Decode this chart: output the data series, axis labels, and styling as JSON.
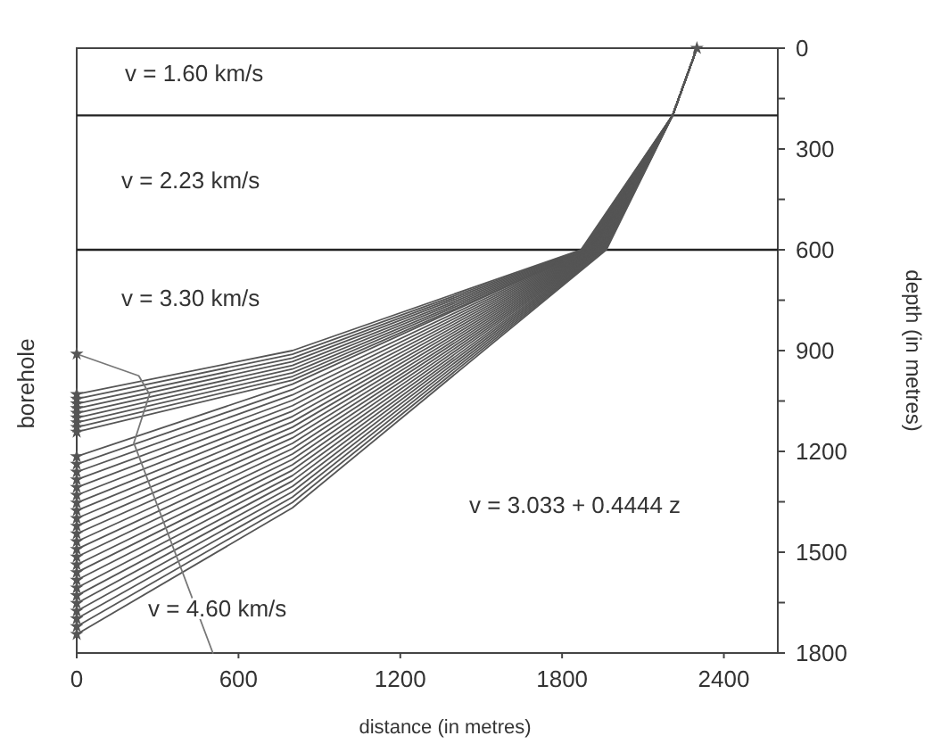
{
  "chart_data": {
    "type": "line",
    "xlabel": "distance (in metres)",
    "ylabel": "depth (in metres)",
    "xlim": [
      0,
      2600
    ],
    "xticks": [
      0,
      600,
      1200,
      1800,
      2400
    ],
    "ylim": [
      1800,
      0
    ],
    "yticks": [
      0,
      {
        "value": 150,
        "label": null
      },
      300,
      {
        "value": 450,
        "label": null
      },
      600,
      {
        "value": 750,
        "label": null
      },
      900,
      {
        "value": 1050,
        "label": null
      },
      1200,
      {
        "value": 1350,
        "label": null
      },
      1500,
      {
        "value": 1650,
        "label": null
      },
      1800
    ],
    "grid": false,
    "marker": "none",
    "line_style": "solid",
    "ref_lines": [
      {
        "axis": "y",
        "value": 200,
        "color": "#222222"
      },
      {
        "axis": "y",
        "value": 600,
        "color": "#222222"
      }
    ],
    "annotations": [
      "v = 1.60 km/s",
      "v = 2.23 km/s",
      "v = 3.30 km/s",
      "v = 4.60 km/s",
      "v = 3.033 + 0.4444 z",
      "borehole"
    ],
    "series": [
      {
        "x": [
          2300,
          2210,
          1870,
          800,
          0
        ],
        "values": [
          0,
          200,
          600,
          900,
          1030
        ],
        "color": "#555555"
      },
      {
        "x": [
          2300,
          2210,
          1874,
          800,
          0
        ],
        "values": [
          0,
          200,
          600,
          911,
          1044
        ],
        "color": "#555555"
      },
      {
        "x": [
          2300,
          2210,
          1878,
          800,
          0
        ],
        "values": [
          0,
          200,
          600,
          922,
          1058
        ],
        "color": "#555555"
      },
      {
        "x": [
          2300,
          2210,
          1882,
          800,
          0
        ],
        "values": [
          0,
          200,
          600,
          933,
          1072
        ],
        "color": "#555555"
      },
      {
        "x": [
          2300,
          2210,
          1886,
          800,
          0
        ],
        "values": [
          0,
          200,
          600,
          944,
          1086
        ],
        "color": "#555555"
      },
      {
        "x": [
          2300,
          2210,
          1890,
          800,
          0
        ],
        "values": [
          0,
          200,
          600,
          955,
          1100
        ],
        "color": "#555555"
      },
      {
        "x": [
          2300,
          2210,
          1894,
          800,
          0
        ],
        "values": [
          0,
          200,
          600,
          966,
          1114
        ],
        "color": "#555555"
      },
      {
        "x": [
          2300,
          2210,
          1898,
          800,
          0
        ],
        "values": [
          0,
          200,
          600,
          977,
          1128
        ],
        "color": "#555555"
      },
      {
        "x": [
          2300,
          2210,
          1902,
          800,
          0
        ],
        "values": [
          0,
          200,
          600,
          988,
          1142
        ],
        "color": "#555555"
      },
      {
        "x": [
          2300,
          2210,
          1895,
          800,
          0
        ],
        "values": [
          0,
          200,
          600,
          1000,
          1215
        ],
        "color": "#555555"
      },
      {
        "x": [
          2300,
          2210,
          1898,
          800,
          0
        ],
        "values": [
          0,
          200,
          600,
          1016,
          1238
        ],
        "color": "#555555"
      },
      {
        "x": [
          2300,
          2210,
          1901,
          800,
          0
        ],
        "values": [
          0,
          200,
          600,
          1032,
          1261
        ],
        "color": "#555555"
      },
      {
        "x": [
          2300,
          2210,
          1904,
          800,
          0
        ],
        "values": [
          0,
          200,
          600,
          1048,
          1284
        ],
        "color": "#555555"
      },
      {
        "x": [
          2300,
          2210,
          1907,
          800,
          0
        ],
        "values": [
          0,
          200,
          600,
          1064,
          1307
        ],
        "color": "#555555"
      },
      {
        "x": [
          2300,
          2210,
          1910,
          800,
          0
        ],
        "values": [
          0,
          200,
          600,
          1080,
          1330
        ],
        "color": "#555555"
      },
      {
        "x": [
          2300,
          2210,
          1913,
          800,
          0
        ],
        "values": [
          0,
          200,
          600,
          1096,
          1353
        ],
        "color": "#555555"
      },
      {
        "x": [
          2300,
          2210,
          1916,
          800,
          0
        ],
        "values": [
          0,
          200,
          600,
          1112,
          1376
        ],
        "color": "#555555"
      },
      {
        "x": [
          2300,
          2210,
          1919,
          800,
          0
        ],
        "values": [
          0,
          200,
          600,
          1128,
          1399
        ],
        "color": "#555555"
      },
      {
        "x": [
          2300,
          2210,
          1922,
          800,
          0
        ],
        "values": [
          0,
          200,
          600,
          1144,
          1422
        ],
        "color": "#555555"
      },
      {
        "x": [
          2300,
          2210,
          1925,
          800,
          0
        ],
        "values": [
          0,
          200,
          600,
          1160,
          1445
        ],
        "color": "#555555"
      },
      {
        "x": [
          2300,
          2210,
          1928,
          800,
          0
        ],
        "values": [
          0,
          200,
          600,
          1176,
          1468
        ],
        "color": "#555555"
      },
      {
        "x": [
          2300,
          2210,
          1931,
          800,
          0
        ],
        "values": [
          0,
          200,
          600,
          1192,
          1491
        ],
        "color": "#555555"
      },
      {
        "x": [
          2300,
          2210,
          1934,
          800,
          0
        ],
        "values": [
          0,
          200,
          600,
          1208,
          1514
        ],
        "color": "#555555"
      },
      {
        "x": [
          2300,
          2210,
          1937,
          800,
          0
        ],
        "values": [
          0,
          200,
          600,
          1224,
          1537
        ],
        "color": "#555555"
      },
      {
        "x": [
          2300,
          2210,
          1940,
          800,
          0
        ],
        "values": [
          0,
          200,
          600,
          1240,
          1560
        ],
        "color": "#555555"
      },
      {
        "x": [
          2300,
          2210,
          1943,
          800,
          0
        ],
        "values": [
          0,
          200,
          600,
          1256,
          1583
        ],
        "color": "#555555"
      },
      {
        "x": [
          2300,
          2210,
          1946,
          800,
          0
        ],
        "values": [
          0,
          200,
          600,
          1272,
          1606
        ],
        "color": "#555555"
      },
      {
        "x": [
          2300,
          2210,
          1949,
          800,
          0
        ],
        "values": [
          0,
          200,
          600,
          1288,
          1629
        ],
        "color": "#555555"
      },
      {
        "x": [
          2300,
          2210,
          1952,
          800,
          0
        ],
        "values": [
          0,
          200,
          600,
          1304,
          1652
        ],
        "color": "#555555"
      },
      {
        "x": [
          2300,
          2210,
          1955,
          800,
          0
        ],
        "values": [
          0,
          200,
          600,
          1320,
          1675
        ],
        "color": "#555555"
      },
      {
        "x": [
          2300,
          2210,
          1958,
          800,
          0
        ],
        "values": [
          0,
          200,
          600,
          1336,
          1698
        ],
        "color": "#555555"
      },
      {
        "x": [
          2300,
          2210,
          1961,
          800,
          0
        ],
        "values": [
          0,
          200,
          600,
          1352,
          1721
        ],
        "color": "#555555"
      },
      {
        "x": [
          2300,
          2210,
          1964,
          800,
          0
        ],
        "values": [
          0,
          200,
          600,
          1368,
          1744
        ],
        "color": "#555555"
      },
      {
        "x": [
          0,
          230,
          270,
          212,
          505
        ],
        "values": [
          910,
          975,
          1030,
          1175,
          1800
        ],
        "color": "#777777"
      },
      {
        "type": "scatter",
        "marker": "star",
        "x": [
          0,
          0,
          0,
          0,
          0,
          0,
          0,
          0,
          0,
          0,
          0,
          0,
          0,
          0,
          0,
          0,
          0,
          0,
          0,
          0,
          0,
          0,
          0,
          0,
          0,
          0,
          0,
          0,
          0,
          0,
          0,
          0,
          0,
          0
        ],
        "values": [
          910,
          1030,
          1044,
          1058,
          1072,
          1086,
          1100,
          1114,
          1128,
          1142,
          1215,
          1238,
          1261,
          1284,
          1307,
          1330,
          1353,
          1376,
          1399,
          1422,
          1445,
          1468,
          1491,
          1514,
          1537,
          1560,
          1583,
          1606,
          1629,
          1652,
          1675,
          1698,
          1721,
          1744
        ],
        "color": "#555555"
      },
      {
        "type": "scatter",
        "marker": "star",
        "x": [
          2300
        ],
        "values": [
          0
        ],
        "color": "#555555"
      }
    ]
  }
}
